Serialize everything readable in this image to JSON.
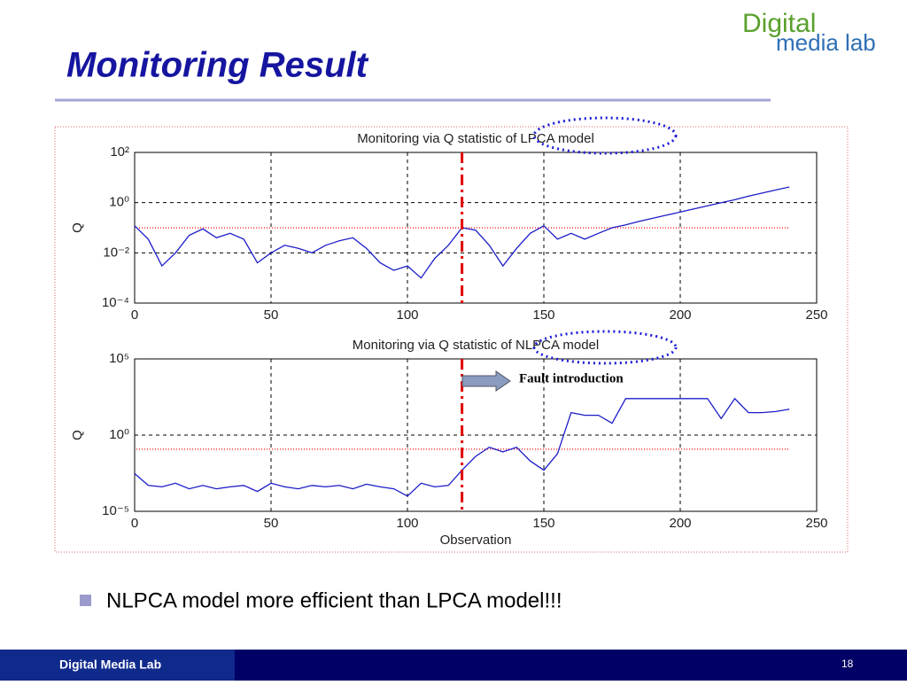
{
  "slide": {
    "title": "Monitoring Result",
    "logo_top": "Digital",
    "logo_bottom": "media lab",
    "bullet": "NLPCA model more efficient than LPCA model!!!",
    "footer": "Digital Media Lab",
    "page_number": 18
  },
  "chart_data": [
    {
      "type": "line",
      "title": "Monitoring via Q statistic of LPCA model",
      "ylabel": "Q",
      "ylog": true,
      "grid": true,
      "color": "#1c1cc8",
      "x": [
        0,
        5,
        10,
        15,
        20,
        25,
        30,
        35,
        40,
        45,
        50,
        55,
        60,
        65,
        70,
        75,
        80,
        85,
        90,
        95,
        100,
        105,
        110,
        115,
        120,
        125,
        130,
        135,
        140,
        145,
        150,
        155,
        160,
        165,
        170,
        175,
        180,
        185,
        190,
        195,
        200,
        205,
        210,
        215,
        220,
        225,
        230,
        235,
        240
      ],
      "values": [
        0.12,
        0.035,
        0.003,
        0.01,
        0.05,
        0.09,
        0.04,
        0.06,
        0.035,
        0.004,
        0.01,
        0.02,
        0.015,
        0.01,
        0.02,
        0.03,
        0.04,
        0.015,
        0.004,
        0.002,
        0.003,
        0.001,
        0.006,
        0.02,
        0.1,
        0.08,
        0.02,
        0.003,
        0.015,
        0.06,
        0.12,
        0.035,
        0.06,
        0.035,
        0.06,
        0.1,
        0.13,
        0.18,
        0.24,
        0.32,
        0.42,
        0.56,
        0.75,
        1.0,
        1.3,
        1.8,
        2.4,
        3.2,
        4.2
      ],
      "limit": 0.1,
      "limit_color": "#ff3030",
      "fault_x": 120,
      "fault_color": "#e00000",
      "xlim": [
        0,
        250
      ],
      "xticks": [
        0,
        50,
        100,
        150,
        200,
        250
      ],
      "ylim": [
        0.0001,
        100
      ],
      "yticks": [
        {
          "value": 0.0001,
          "label": "10⁻⁴"
        },
        {
          "value": 0.01,
          "label": "10⁻²"
        },
        {
          "value": 1,
          "label": "10⁰"
        },
        {
          "value": 100,
          "label": "10²"
        }
      ]
    },
    {
      "type": "line",
      "title": "Monitoring via Q statistic of NLPCA model",
      "ylabel": "Q",
      "xlabel": "Observation",
      "ylog": true,
      "grid": true,
      "color": "#1c1cc8",
      "x": [
        0,
        5,
        10,
        15,
        20,
        25,
        30,
        35,
        40,
        45,
        50,
        55,
        60,
        65,
        70,
        75,
        80,
        85,
        90,
        95,
        100,
        105,
        110,
        115,
        120,
        125,
        130,
        135,
        140,
        145,
        150,
        155,
        160,
        165,
        170,
        175,
        180,
        185,
        190,
        195,
        200,
        205,
        210,
        215,
        220,
        225,
        230,
        235,
        240
      ],
      "values": [
        0.003,
        0.0005,
        0.0004,
        0.0007,
        0.0003,
        0.0005,
        0.0003,
        0.0004,
        0.0005,
        0.0002,
        0.0007,
        0.0004,
        0.0003,
        0.0005,
        0.0004,
        0.0005,
        0.0003,
        0.0006,
        0.0004,
        0.0003,
        0.0001,
        0.0007,
        0.0004,
        0.0005,
        0.005,
        0.04,
        0.16,
        0.08,
        0.16,
        0.02,
        0.005,
        0.06,
        30,
        20,
        20,
        6,
        250,
        250,
        250,
        250,
        250,
        250,
        250,
        12,
        250,
        30,
        30,
        35,
        50
      ],
      "limit": 0.12,
      "limit_color": "#ff3030",
      "fault_x": 120,
      "fault_color": "#e00000",
      "annotation": "Fault introduction",
      "xlim": [
        0,
        250
      ],
      "xticks": [
        0,
        50,
        100,
        150,
        200,
        250
      ],
      "ylim": [
        1e-05,
        100000
      ],
      "yticks": [
        {
          "value": 1e-05,
          "label": "10⁻⁵"
        },
        {
          "value": 1,
          "label": "10⁰"
        },
        {
          "value": 100000,
          "label": "10⁵"
        }
      ]
    }
  ]
}
